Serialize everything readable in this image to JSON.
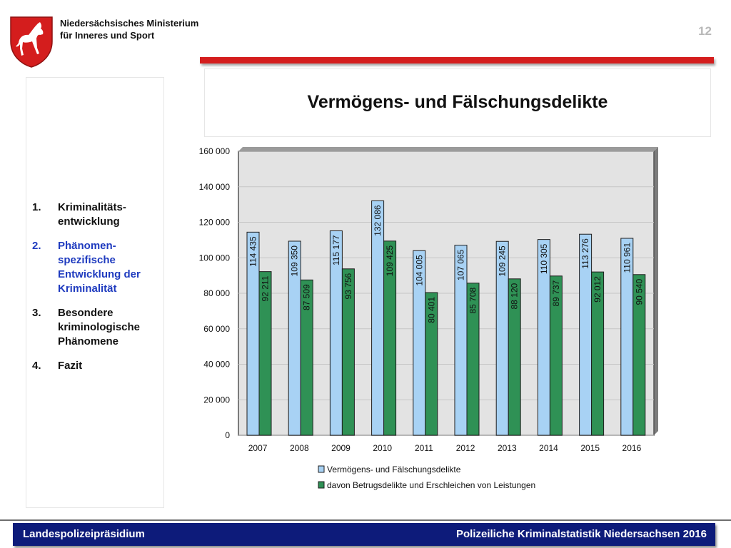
{
  "header": {
    "ministry_line1": "Niedersächsisches Ministerium",
    "ministry_line2": "für Inneres und Sport",
    "page_number": "12"
  },
  "colors": {
    "accent_red": "#d41d1d",
    "footer_blue": "#0d1b7a",
    "agenda_active": "#1f3bbf",
    "series_1": "#a8d2f4",
    "series_2": "#2f9155"
  },
  "slide": {
    "title": "Vermögens- und Fälschungsdelikte"
  },
  "agenda": {
    "items": [
      {
        "number": "1.",
        "label": "Kriminalitäts-entwicklung",
        "active": false
      },
      {
        "number": "2.",
        "label": "Phänomen-spezifische Entwicklung der Kriminalität",
        "active": true
      },
      {
        "number": "3.",
        "label": "Besondere kriminologische Phänomene",
        "active": false
      },
      {
        "number": "4.",
        "label": "Fazit",
        "active": false
      }
    ]
  },
  "chart_data": {
    "type": "bar",
    "categories": [
      "2007",
      "2008",
      "2009",
      "2010",
      "2011",
      "2012",
      "2013",
      "2014",
      "2015",
      "2016"
    ],
    "series": [
      {
        "name": "Vermögens- und Fälschungsdelikte",
        "color": "#a8d2f4",
        "values": [
          114435,
          109350,
          115177,
          132086,
          104005,
          107065,
          109245,
          110305,
          113276,
          110961
        ],
        "labels": [
          "114 435",
          "109 350",
          "115 177",
          "132 086",
          "104 005",
          "107 065",
          "109 245",
          "110 305",
          "113 276",
          "110 961"
        ]
      },
      {
        "name": "davon Betrugsdelikte und Erschleichen von Leistungen",
        "color": "#2f9155",
        "values": [
          92211,
          87509,
          93756,
          109425,
          80401,
          85708,
          88120,
          89737,
          92012,
          90540
        ],
        "labels": [
          "92 211",
          "87 509",
          "93 756",
          "109 425",
          "80 401",
          "85 708",
          "88 120",
          "89 737",
          "92 012",
          "90 540"
        ]
      }
    ],
    "ylim": [
      0,
      160000
    ],
    "yticks": [
      0,
      20000,
      40000,
      60000,
      80000,
      100000,
      120000,
      140000,
      160000
    ],
    "ytick_labels": [
      "0",
      "20 000",
      "40 000",
      "60 000",
      "80 000",
      "100 000",
      "120 000",
      "140 000",
      "160 000"
    ],
    "grid": true,
    "legend_position": "bottom",
    "title": "",
    "xlabel": "",
    "ylabel": ""
  },
  "footer": {
    "left": "Landespolizeipräsidium",
    "right": "Polizeiliche Kriminalstatistik Niedersachsen 2016"
  }
}
